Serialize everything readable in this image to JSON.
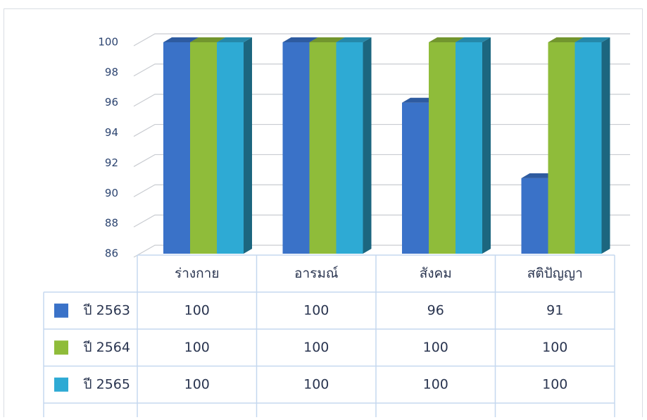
{
  "chart_data": {
    "type": "bar3d",
    "categories": [
      "ร่างกาย",
      "อารมณ์",
      "สังคม",
      "สติปัญญา"
    ],
    "series": [
      {
        "name": "ปี 2563",
        "color": "#3a72c8",
        "values": [
          100,
          100,
          96,
          91
        ]
      },
      {
        "name": "ปี 2564",
        "color": "#8fbc3a",
        "values": [
          100,
          100,
          100,
          100
        ]
      },
      {
        "name": "ปี 2565",
        "color": "#2eaad4",
        "values": [
          100,
          100,
          100,
          100
        ]
      }
    ],
    "ylim": [
      86,
      100
    ],
    "yticks": [
      86,
      88,
      90,
      92,
      94,
      96,
      98,
      100
    ],
    "grid": true,
    "data_table": true
  }
}
